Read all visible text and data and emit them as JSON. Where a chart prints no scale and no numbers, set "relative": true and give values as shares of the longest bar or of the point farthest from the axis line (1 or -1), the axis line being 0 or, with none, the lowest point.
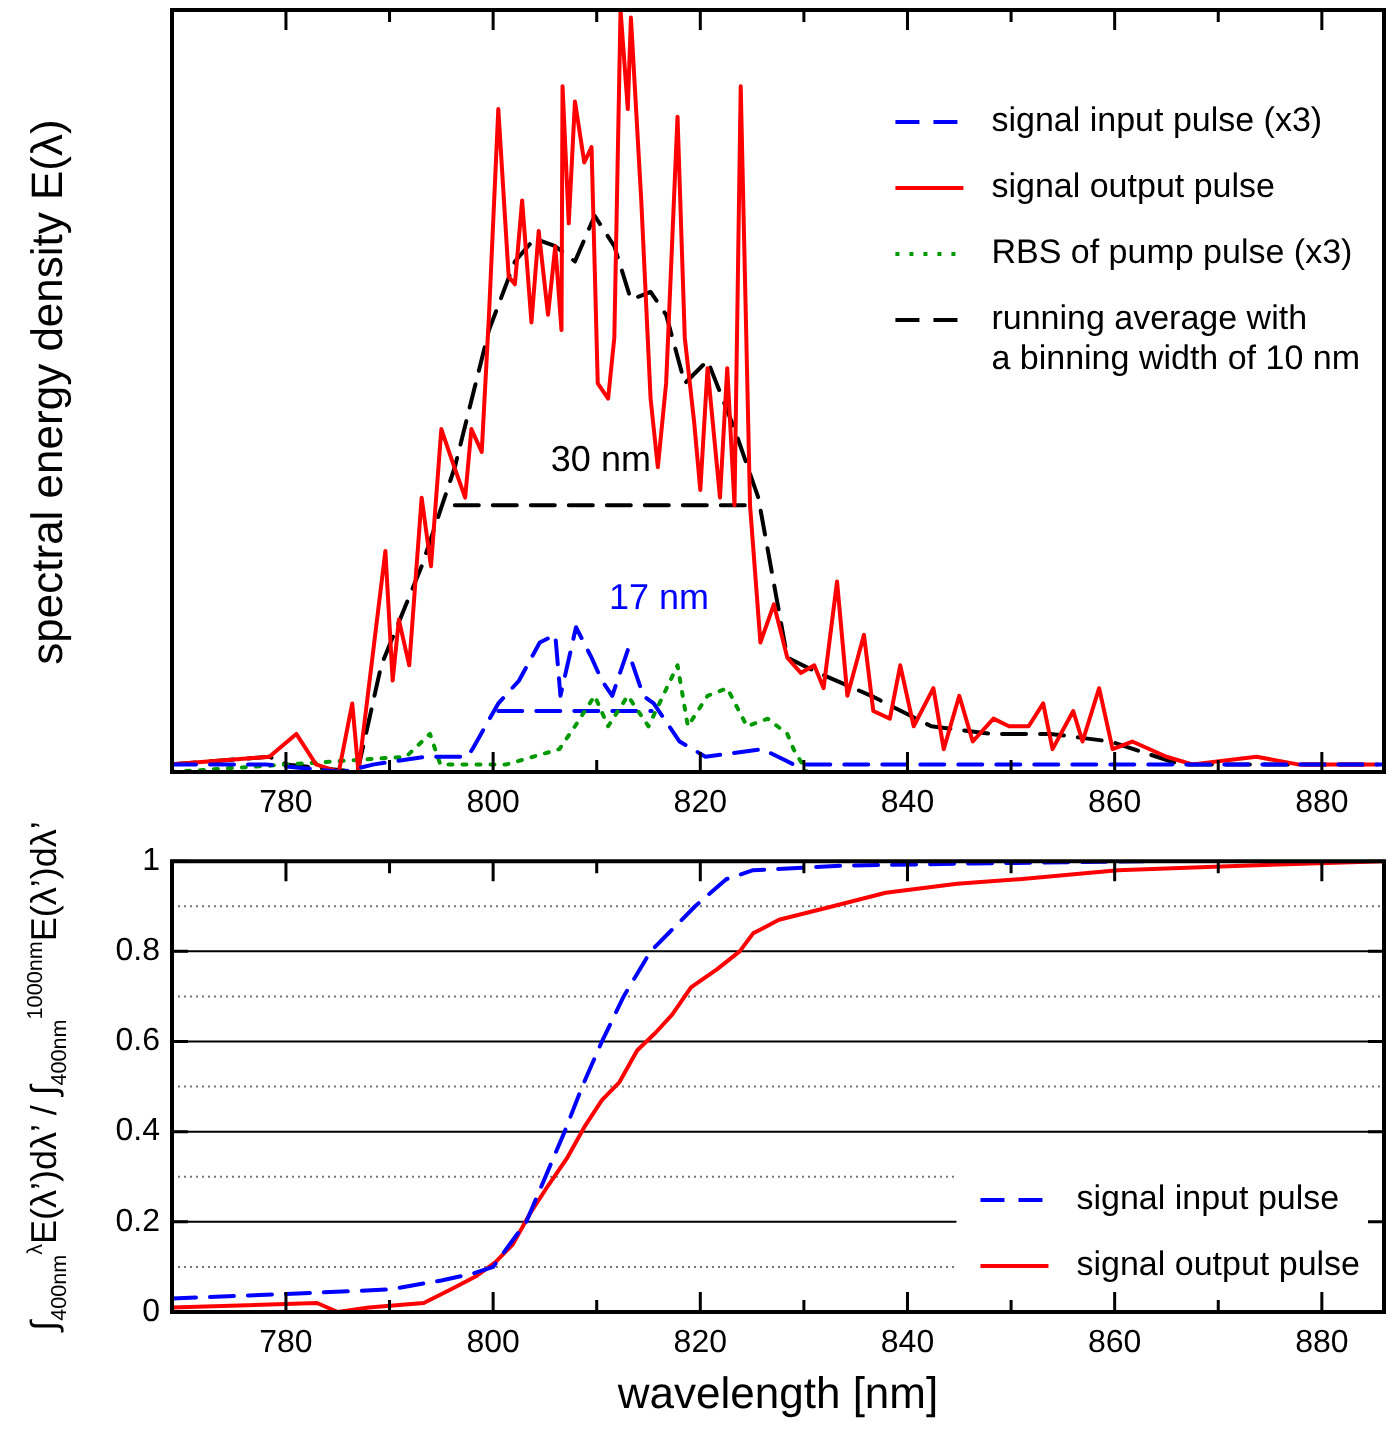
{
  "chart_data": [
    {
      "type": "line",
      "relative": true,
      "tick_labels": "x",
      "ylabel": "spectral energy density E(λ)",
      "xlim": [
        769,
        886
      ],
      "xticks": [
        780,
        {
          "value": 790,
          "label": null
        },
        800,
        {
          "value": 810,
          "label": null
        },
        820,
        {
          "value": 830,
          "label": null
        },
        840,
        {
          "value": 850,
          "label": null
        },
        860,
        {
          "value": 870,
          "label": null
        },
        880
      ],
      "legend": "top right",
      "annotations": [
        "30 nm",
        "17 nm"
      ],
      "series": [
        {
          "name": "signal input pulse (x3)",
          "color": "#0000ff",
          "line_style": "dashed",
          "x": [
            769,
            778,
            785.5,
            788.5,
            793.5,
            797.5,
            798,
            800.5,
            802.5,
            804.5,
            806,
            806.5,
            808,
            809.5,
            810.5,
            811.5,
            813,
            814.5,
            815.5,
            818,
            820.5,
            826,
            829,
            840,
            860,
            886
          ],
          "values": [
            0.01,
            0.01,
            0,
            0.01,
            0.02,
            0.02,
            0.03,
            0.09,
            0.12,
            0.17,
            0.18,
            0.1,
            0.19,
            0.15,
            0.12,
            0.1,
            0.16,
            0.1,
            0.09,
            0.04,
            0.02,
            0.03,
            0.01,
            0.01,
            0.01,
            0.01
          ]
        },
        {
          "name": "signal output pulse",
          "color": "#ff0000",
          "line_style": "solid",
          "x": [
            769,
            778.4,
            781,
            782.9,
            785.1,
            786.4,
            787,
            789.6,
            790.3,
            790.9,
            791.9,
            793.1,
            794,
            795,
            796,
            797.3,
            797.9,
            798.9,
            799.6,
            800.5,
            801.5,
            802.1,
            802.8,
            803.7,
            804.4,
            805.3,
            806,
            806.6,
            806.7,
            807.3,
            807.9,
            808.8,
            809.5,
            810.1,
            811.1,
            811.7,
            812.3,
            813,
            813.3,
            814.3,
            815.2,
            815.9,
            816.7,
            817.8,
            818.5,
            819.4,
            820,
            820.7,
            821.9,
            822.6,
            823.3,
            823.9,
            824.8,
            825.8,
            827.1,
            828.4,
            829.7,
            831,
            831.9,
            833.2,
            834.2,
            835.8,
            836.7,
            838.3,
            839.3,
            840.6,
            842.5,
            843.5,
            845,
            846.3,
            848.3,
            849.8,
            851.7,
            853.1,
            854,
            856,
            856.9,
            858.5,
            859.8,
            861.7,
            865,
            867.5,
            873.7,
            877.7,
            885.4
          ],
          "values": [
            0.01,
            0.02,
            0.05,
            0.01,
            0,
            0.09,
            0,
            0.29,
            0.12,
            0.2,
            0.14,
            0.36,
            0.27,
            0.45,
            0.41,
            0.36,
            0.45,
            0.42,
            0.6,
            0.87,
            0.65,
            0.64,
            0.75,
            0.59,
            0.71,
            0.6,
            0.69,
            0.58,
            0.9,
            0.72,
            0.88,
            0.8,
            0.82,
            0.51,
            0.49,
            0.57,
            1,
            0.87,
            0.99,
            0.75,
            0.49,
            0.4,
            0.51,
            0.86,
            0.57,
            0.46,
            0.37,
            0.53,
            0.36,
            0.53,
            0.35,
            0.9,
            0.35,
            0.17,
            0.22,
            0.15,
            0.13,
            0.14,
            0.11,
            0.25,
            0.1,
            0.18,
            0.08,
            0.07,
            0.14,
            0.06,
            0.11,
            0.03,
            0.1,
            0.04,
            0.07,
            0.06,
            0.06,
            0.09,
            0.03,
            0.08,
            0.04,
            0.11,
            0.03,
            0.04,
            0.02,
            0.01,
            0.02,
            0.01,
            0.01
          ]
        },
        {
          "name": "RBS of pump pulse (x3)",
          "color": "#009900",
          "line_style": "dotted",
          "x": [
            769,
            791.6,
            793.9,
            794.9,
            801.3,
            806.4,
            807.9,
            809.8,
            811.1,
            813,
            815,
            817.8,
            818.8,
            820.7,
            822.6,
            824.5,
            826.5,
            828.4,
            829,
            830.3
          ],
          "values": [
            0,
            0.02,
            0.05,
            0.01,
            0.01,
            0.03,
            0.06,
            0.1,
            0.06,
            0.1,
            0.06,
            0.14,
            0.06,
            0.1,
            0.11,
            0.06,
            0.07,
            0.05,
            0.03,
            0
          ]
        },
        {
          "name": "running average with\na binning width of 10 nm",
          "color": "#000000",
          "line_style": "dashed",
          "x": [
            769,
            778.4,
            780,
            786.9,
            789.2,
            793.1,
            796.3,
            799.6,
            802.1,
            804,
            806,
            807.9,
            809.8,
            811.7,
            813.3,
            815.2,
            816.7,
            818.5,
            820.7,
            823.3,
            825.6,
            828.4,
            831.4,
            836.5,
            842.3,
            848.1,
            853.8,
            859.6,
            866.3,
            885.4
          ],
          "values": [
            0.01,
            0.02,
            0.01,
            0,
            0.14,
            0.27,
            0.4,
            0.58,
            0.67,
            0.7,
            0.69,
            0.67,
            0.73,
            0.69,
            0.62,
            0.63,
            0.6,
            0.51,
            0.54,
            0.45,
            0.36,
            0.15,
            0.13,
            0.1,
            0.06,
            0.05,
            0.05,
            0.04,
            0.01,
            0.01
          ]
        },
        {
          "color": "#000000",
          "line_style": "dashed",
          "x": [
            796.3,
            824.5
          ],
          "values": [
            0.35,
            0.35
          ]
        },
        {
          "color": "#0000ff",
          "line_style": "dashed",
          "x": [
            800.5,
            815.3
          ],
          "values": [
            0.08,
            0.08
          ]
        }
      ]
    },
    {
      "type": "line",
      "xlabel": "wavelength [nm]",
      "ylabel": "∫$_{400nm}$$^{λ}$E(λ’)dλ’ / ∫$_{400nm}$$^{1000nm}$E(λ’)dλ’",
      "xlim": [
        769,
        886
      ],
      "xticks": [
        780,
        {
          "value": 790,
          "label": null
        },
        800,
        {
          "value": 810,
          "label": null
        },
        820,
        {
          "value": 830,
          "label": null
        },
        840,
        {
          "value": 850,
          "label": null
        },
        860,
        {
          "value": 870,
          "label": null
        },
        880
      ],
      "ylim": [
        0,
        1
      ],
      "yticks": [
        0,
        {
          "value": 0.1,
          "label": null
        },
        0.2,
        {
          "value": 0.3,
          "label": null
        },
        0.4,
        {
          "value": 0.5,
          "label": null
        },
        0.6,
        {
          "value": 0.7,
          "label": null
        },
        0.8,
        {
          "value": 0.9,
          "label": null
        },
        1
      ],
      "grid": "y",
      "legend": "bottom right",
      "series": [
        {
          "name": "signal input pulse",
          "color": "#0000ff",
          "line_style": "dashed",
          "x": [
            769,
            780,
            790,
            795,
            798,
            800,
            803.2,
            806.9,
            808.6,
            810.5,
            812.6,
            815.2,
            819.5,
            822.5,
            825.1,
            833.6,
            846.5,
            863.7
          ],
          "values": [
            0.03,
            0.04,
            0.05,
            0.07,
            0.085,
            0.1,
            0.2,
            0.4,
            0.5,
            0.6,
            0.7,
            0.8,
            0.9,
            0.96,
            0.98,
            0.99,
            0.995,
            1
          ]
        },
        {
          "name": "signal output pulse",
          "color": "#ff0000",
          "line_style": "solid",
          "x": [
            769,
            783,
            785,
            788,
            793.3,
            795.9,
            798.4,
            800.2,
            801.9,
            803.6,
            805.3,
            807.1,
            808.8,
            810.5,
            812.2,
            813.9,
            815.7,
            817.3,
            819.1,
            821.6,
            823.8,
            825.1,
            827.6,
            832.8,
            837.9,
            844.8,
            850.8,
            860.3,
            872.3,
            886
          ],
          "values": [
            0.01,
            0.02,
            0,
            0.01,
            0.02,
            0.05,
            0.08,
            0.11,
            0.15,
            0.22,
            0.28,
            0.34,
            0.41,
            0.47,
            0.51,
            0.58,
            0.62,
            0.66,
            0.72,
            0.76,
            0.8,
            0.84,
            0.87,
            0.9,
            0.93,
            0.95,
            0.96,
            0.98,
            0.99,
            1
          ]
        }
      ]
    }
  ]
}
